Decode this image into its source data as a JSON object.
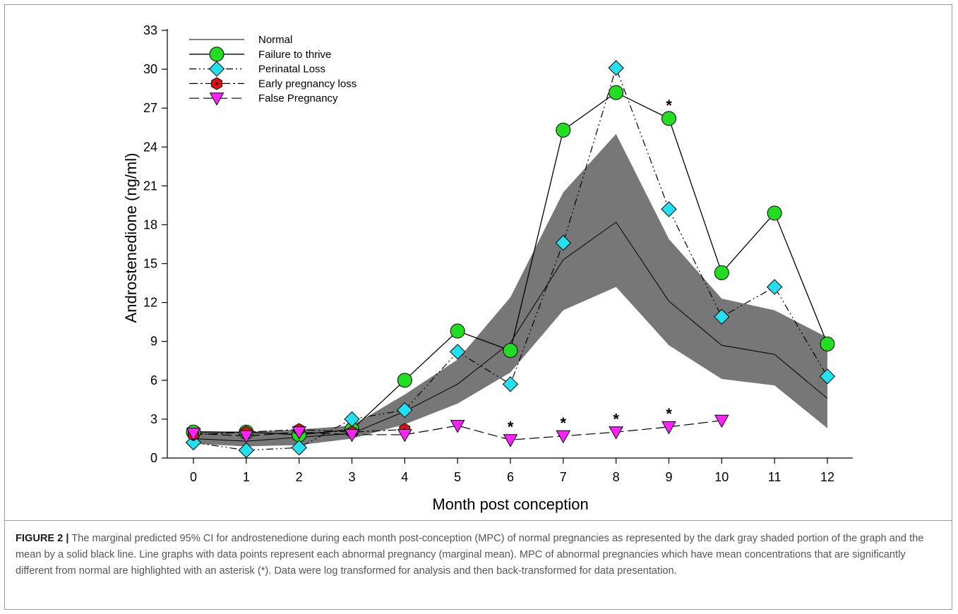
{
  "chart_data": {
    "type": "line",
    "xlabel": "Month post conception",
    "ylabel": "Androstenedione (ng/ml)",
    "xlim": [
      -0.5,
      12.5
    ],
    "ylim": [
      0,
      33
    ],
    "x_ticks": [
      0,
      1,
      2,
      3,
      4,
      5,
      6,
      7,
      8,
      9,
      10,
      11,
      12
    ],
    "y_ticks": [
      0,
      3,
      6,
      9,
      12,
      15,
      18,
      21,
      24,
      27,
      30,
      33
    ],
    "legend_position": "top-left",
    "grid": false,
    "band": {
      "x": [
        0,
        1,
        2,
        3,
        4,
        5,
        6,
        7,
        8,
        9,
        10,
        11,
        12
      ],
      "lower": [
        1.1,
        0.9,
        1.0,
        1.5,
        2.6,
        4.2,
        6.6,
        11.4,
        13.2,
        8.7,
        6.1,
        5.6,
        2.3
      ],
      "upper": [
        2.1,
        2.0,
        2.2,
        2.5,
        4.9,
        7.6,
        12.4,
        20.5,
        25.0,
        16.9,
        12.3,
        11.4,
        9.3
      ],
      "color": "#777777"
    },
    "series": [
      {
        "name": "Normal",
        "style": "solid-thin",
        "marker": "none",
        "color": "#000000",
        "x": [
          0,
          1,
          2,
          3,
          4,
          5,
          6,
          7,
          8,
          9,
          10,
          11,
          12
        ],
        "values": [
          1.5,
          1.3,
          1.6,
          1.9,
          3.6,
          5.7,
          8.9,
          15.3,
          18.2,
          12.1,
          8.7,
          8.0,
          4.6
        ]
      },
      {
        "name": "Failure to thrive",
        "style": "solid",
        "marker": "circle",
        "color": "#22dd22",
        "x": [
          0,
          1,
          2,
          3,
          4,
          5,
          6,
          7,
          8,
          9,
          10,
          11,
          12
        ],
        "values": [
          2.0,
          2.0,
          1.8,
          2.2,
          6.0,
          9.8,
          8.3,
          25.3,
          28.2,
          26.2,
          14.3,
          18.9,
          8.8
        ]
      },
      {
        "name": "Perinatal Loss",
        "style": "dash-dot-dot",
        "marker": "diamond",
        "color": "#22e0ee",
        "x": [
          0,
          1,
          2,
          3,
          4,
          5,
          6,
          7,
          8,
          9,
          10,
          11,
          12
        ],
        "values": [
          1.2,
          0.6,
          0.8,
          3.0,
          3.7,
          8.2,
          5.7,
          16.6,
          30.1,
          19.2,
          10.9,
          13.2,
          6.3
        ]
      },
      {
        "name": "Early pregnancy loss",
        "style": "dash-dot",
        "marker": "hexagon",
        "color": "#e01010",
        "x": [
          0,
          1,
          2,
          3,
          4
        ],
        "values": [
          1.8,
          2.0,
          2.2,
          2.0,
          2.2
        ]
      },
      {
        "name": "False Pregnancy",
        "style": "dash",
        "marker": "triangle-down",
        "color": "#ff22ff",
        "x": [
          0,
          1,
          2,
          3,
          4,
          5,
          6,
          7,
          8,
          9,
          10
        ],
        "values": [
          1.9,
          1.7,
          2.0,
          1.8,
          1.8,
          2.5,
          1.4,
          1.7,
          2.0,
          2.4,
          2.9
        ]
      }
    ],
    "asterisks": [
      {
        "x": 6,
        "y": 1.4
      },
      {
        "x": 7,
        "y": 1.7
      },
      {
        "x": 8,
        "y": 2.0
      },
      {
        "x": 9,
        "y": 2.4
      },
      {
        "x": 9,
        "y": 26.2
      }
    ],
    "asterisk_symbol": "*"
  },
  "caption": {
    "label": "FIGURE 2 |",
    "text": " The marginal predicted 95% CI for androstenedione during each month post-conception (MPC) of normal pregnancies as represented by the dark gray shaded portion of the graph and the mean by a solid black line. Line graphs with data points represent each abnormal pregnancy (marginal mean). MPC of abnormal pregnancies which have mean concentrations that are significantly different from normal are highlighted with an asterisk (*). Data were log transformed for analysis and then back-transformed for data presentation."
  }
}
